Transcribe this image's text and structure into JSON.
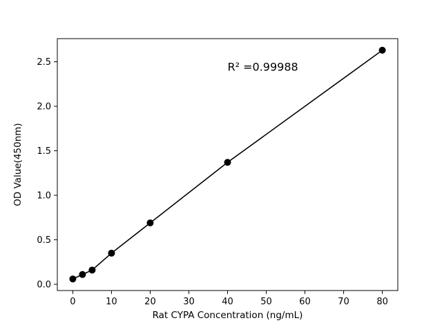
{
  "chart_data": {
    "type": "scatter",
    "title": "",
    "xlabel": "Rat CYPA Concentration (ng/mL)",
    "ylabel": "OD Value(450nm)",
    "x": [
      0,
      2.5,
      5,
      10,
      20,
      40,
      80
    ],
    "y": [
      0.06,
      0.11,
      0.16,
      0.35,
      0.69,
      1.37,
      2.63
    ],
    "xticks": [
      0,
      10,
      20,
      30,
      40,
      50,
      60,
      70,
      80
    ],
    "xtick_labels": [
      "0",
      "10",
      "20",
      "30",
      "40",
      "50",
      "60",
      "70",
      "80"
    ],
    "yticks": [
      0.0,
      0.5,
      1.0,
      1.5,
      2.0,
      2.5
    ],
    "ytick_labels": [
      "0.0",
      "0.5",
      "1.0",
      "1.5",
      "2.0",
      "2.5"
    ],
    "xlim": [
      -4,
      84
    ],
    "ylim": [
      -0.07,
      2.76
    ],
    "annotation": "R² =0.99988",
    "annotation_xy": [
      40,
      2.4
    ],
    "line_color": "#000000",
    "marker_color": "#000000",
    "grid": "off",
    "legend": "none"
  }
}
